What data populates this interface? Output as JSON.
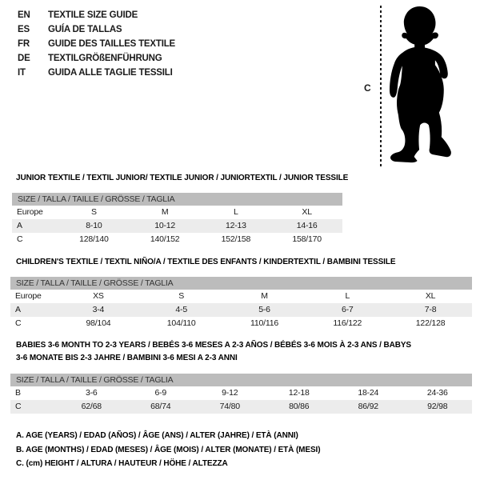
{
  "header": {
    "languages": [
      {
        "code": "EN",
        "label": "TEXTILE SIZE GUIDE"
      },
      {
        "code": "ES",
        "label": "GUÍA DE TALLAS"
      },
      {
        "code": "FR",
        "label": "GUIDE DES TAILLES TEXTILE"
      },
      {
        "code": "DE",
        "label": "TEXTILGRÖßENFÜHRUNG"
      },
      {
        "code": "IT",
        "label": "GUIDA ALLE TAGLIE TESSILI"
      }
    ]
  },
  "figure": {
    "label": "C",
    "icon": "baby-silhouette"
  },
  "tables": [
    {
      "title": "JUNIOR TEXTILE / TEXTIL JUNIOR/ TEXTILE JUNIOR / JUNIORTEXTIL / JUNIOR TESSILE",
      "size_header": "SIZE / TALLA / TAILLE / GRÖSSE / TAGLIA",
      "rows": [
        {
          "label": "Europe",
          "cells": [
            "S",
            "M",
            "L",
            "XL"
          ]
        },
        {
          "label": "A",
          "cells": [
            "8-10",
            "10-12",
            "12-13",
            "14-16"
          ]
        },
        {
          "label": "C",
          "cells": [
            "128/140",
            "140/152",
            "152/158",
            "158/170"
          ]
        }
      ]
    },
    {
      "title": "CHILDREN'S TEXTILE / TEXTIL NIÑO/A / TEXTILE DES ENFANTS / KINDERTEXTIL / BAMBINI TESSILE",
      "size_header": "SIZE / TALLA / TAILLE / GRÖSSE / TAGLIA",
      "rows": [
        {
          "label": "Europe",
          "cells": [
            "XS",
            "S",
            "M",
            "L",
            "XL"
          ]
        },
        {
          "label": "A",
          "cells": [
            "3-4",
            "4-5",
            "5-6",
            "6-7",
            "7-8"
          ]
        },
        {
          "label": "C",
          "cells": [
            "98/104",
            "104/110",
            "110/116",
            "116/122",
            "122/128"
          ]
        }
      ]
    },
    {
      "title": "BABIES 3-6 MONTH TO 2-3 YEARS / BEBÉS 3-6 MESES A 2-3 AÑOS / BÉBÉS 3-6 MOIS À 2-3 ANS / BABYS 3-6 MONATE BIS 2-3 JAHRE / BAMBINI 3-6 MESI A 2-3 ANNI",
      "size_header": "SIZE / TALLA / TAILLE / GRÖSSE / TAGLIA",
      "rows": [
        {
          "label": "B",
          "cells": [
            "3-6",
            "6-9",
            "9-12",
            "12-18",
            "18-24",
            "24-36"
          ]
        },
        {
          "label": "C",
          "cells": [
            "62/68",
            "68/74",
            "74/80",
            "80/86",
            "86/92",
            "92/98"
          ]
        }
      ]
    }
  ],
  "notes": [
    "A. AGE (YEARS) / EDAD (AÑOS) / ÂGE (ANS) / ALTER (JAHRE) / ETÀ (ANNI)",
    "B. AGE (MONTHS) / EDAD (MESES) / ÂGE (MOIS) / ALTER (MONATE) / ETÀ (MESI)",
    "C. (cm) HEIGHT / ALTURA / HAUTEUR / HÖHE / ALTEZZA"
  ],
  "colors": {
    "band": "#bcbcbc",
    "alt": "#ececec",
    "ink": "#1a1a1a",
    "bg": "#ffffff"
  }
}
